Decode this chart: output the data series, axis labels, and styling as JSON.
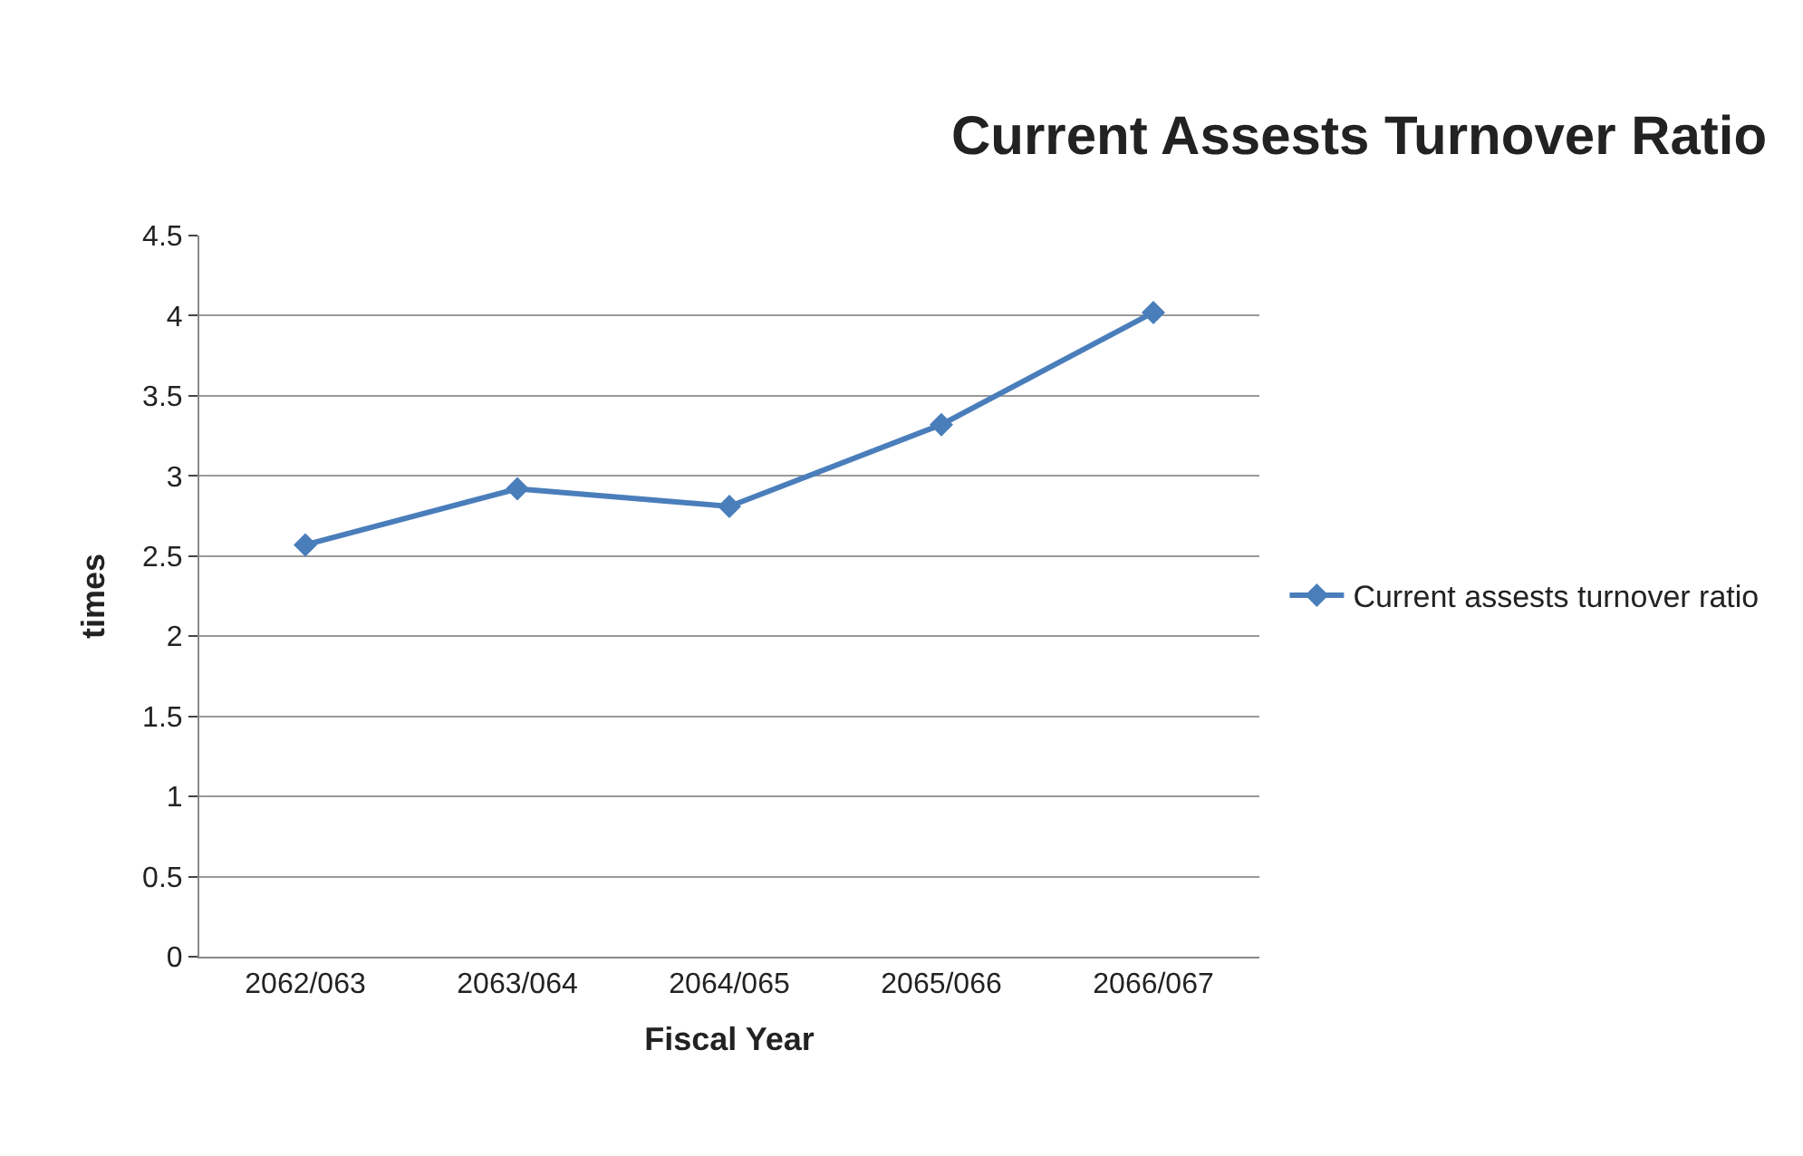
{
  "chart_data": {
    "type": "line",
    "title": "Current Assests Turnover Ratio",
    "xlabel": "Fiscal Year",
    "ylabel": "times",
    "categories": [
      "2062/063",
      "2063/064",
      "2064/065",
      "2065/066",
      "2066/067"
    ],
    "series": [
      {
        "name": "Current assests turnover ratio",
        "color": "#4a7ebb",
        "values": [
          2.57,
          2.92,
          2.81,
          3.32,
          4.02
        ]
      }
    ],
    "ylim": [
      0,
      4.5
    ],
    "yticks": [
      0,
      0.5,
      1,
      1.5,
      2,
      2.5,
      3,
      3.5,
      4,
      4.5
    ],
    "grid": "y",
    "legend": "right",
    "marker": "diamond",
    "line_style": "solid"
  }
}
